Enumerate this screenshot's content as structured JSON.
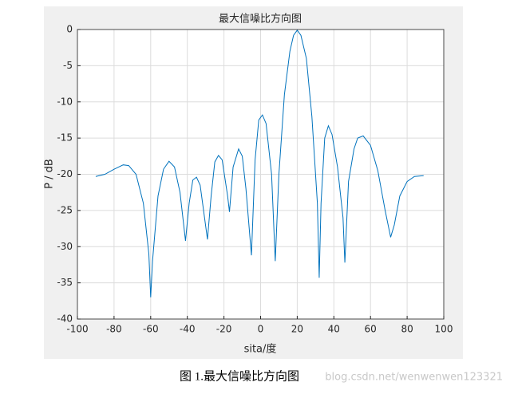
{
  "chart_data": {
    "type": "line",
    "title": "最大信噪比方向图",
    "xlabel": "sita/度",
    "ylabel": "P / dB",
    "x": [
      -90,
      -85,
      -80,
      -75,
      -72,
      -68,
      -64,
      -61,
      -60,
      -59,
      -56,
      -53,
      -50,
      -47,
      -44,
      -41,
      -39,
      -37,
      -35,
      -33,
      -29,
      -27,
      -25,
      -23,
      -21,
      -18,
      -17,
      -15,
      -12,
      -10,
      -8,
      -5,
      -3,
      -1,
      1,
      3,
      6,
      8,
      10,
      13,
      16,
      18,
      20,
      22,
      25,
      28,
      31,
      32,
      33,
      35,
      37,
      39,
      42,
      45,
      46,
      48,
      51,
      53,
      56,
      60,
      64,
      68,
      71,
      73,
      76,
      80,
      84,
      89
    ],
    "series": [
      {
        "color": "#0072bd",
        "values": [
          -20.3,
          -20,
          -19.3,
          -18.7,
          -18.8,
          -20,
          -24,
          -31,
          -37,
          -32,
          -23,
          -19.3,
          -18.2,
          -19,
          -22.5,
          -29.2,
          -24,
          -20.8,
          -20.4,
          -21.5,
          -29,
          -23,
          -18.3,
          -17.4,
          -18,
          -23,
          -25.2,
          -19,
          -16.5,
          -17.5,
          -22,
          -31.2,
          -18,
          -12.5,
          -11.8,
          -13,
          -20,
          -32,
          -20,
          -9,
          -3,
          -0.8,
          -0.1,
          -0.8,
          -4,
          -12,
          -24,
          -34.3,
          -24,
          -15,
          -13.3,
          -14.5,
          -19,
          -26,
          -32.2,
          -21,
          -16.5,
          -15,
          -14.7,
          -16,
          -19.5,
          -25,
          -28.7,
          -27,
          -23,
          -21,
          -20.3,
          -20.2
        ]
      }
    ],
    "xlim": [
      -100,
      100
    ],
    "ylim": [
      -40,
      0
    ],
    "xticks": [
      -100,
      -80,
      -60,
      -40,
      -20,
      0,
      20,
      40,
      60,
      80,
      100
    ],
    "yticks": [
      -40,
      -35,
      -30,
      -25,
      -20,
      -15,
      -10,
      -5,
      0
    ],
    "grid": true
  },
  "caption": "图 1.最大信噪比方向图",
  "watermark": "blog.csdn.net/wenwenwen123321"
}
